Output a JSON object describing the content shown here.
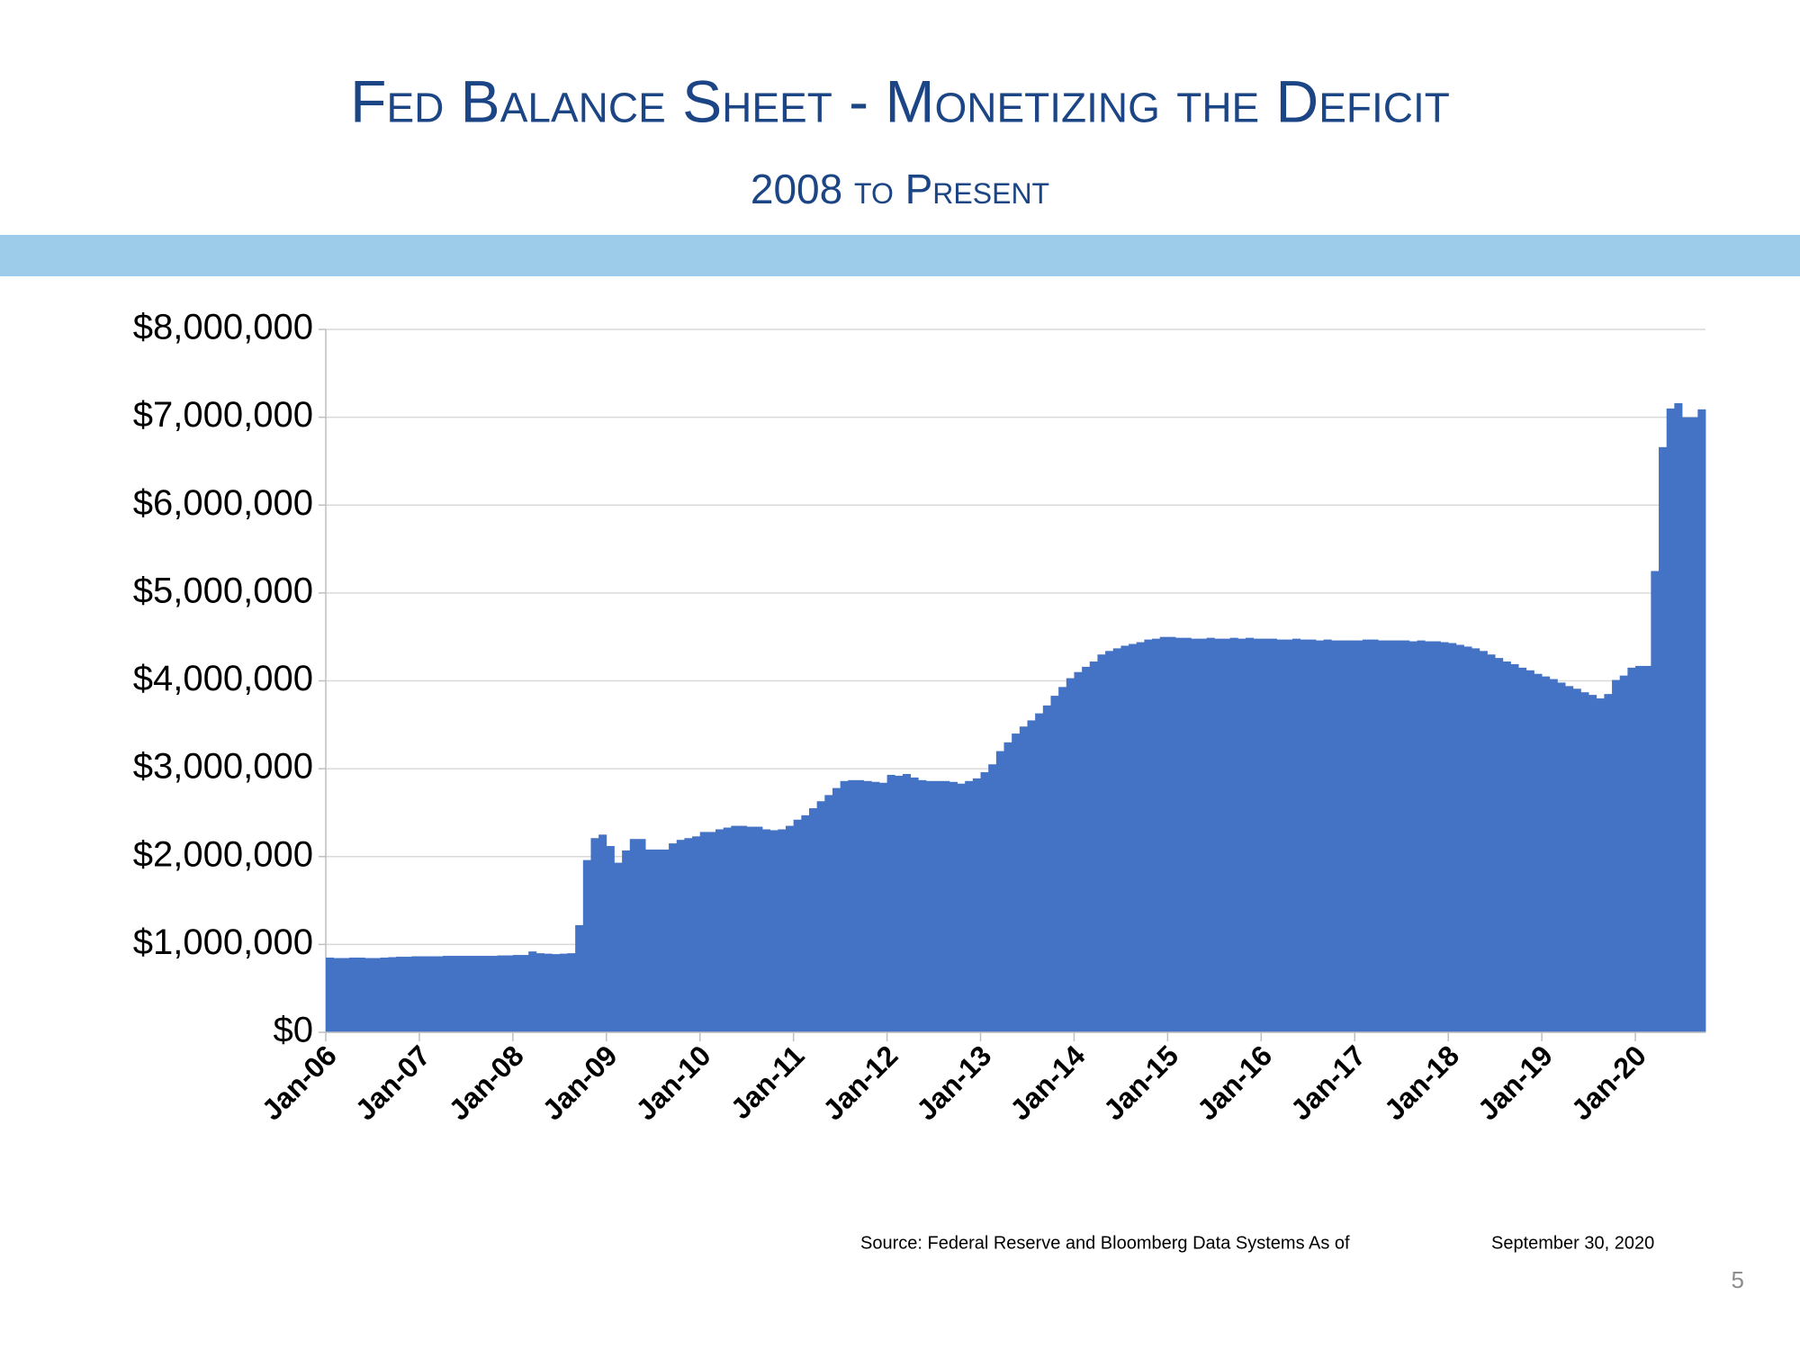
{
  "chart_data": {
    "type": "bar",
    "title": "Fed Balance Sheet - Monetizing the Deficit",
    "subtitle": "2008 to Present",
    "source": "Source:  Federal Reserve and Bloomberg Data Systems As of",
    "source_date": "September 30, 2020",
    "page_number": "5",
    "color": "#4472c4",
    "grid": true,
    "categories": [
      "Jan-06",
      null,
      null,
      null,
      null,
      null,
      null,
      null,
      null,
      null,
      null,
      null,
      "Jan-07",
      null,
      null,
      null,
      null,
      null,
      null,
      null,
      null,
      null,
      null,
      null,
      "Jan-08",
      null,
      null,
      null,
      null,
      null,
      null,
      null,
      null,
      null,
      null,
      null,
      "Jan-09",
      null,
      null,
      null,
      null,
      null,
      null,
      null,
      null,
      null,
      null,
      null,
      "Jan-10",
      null,
      null,
      null,
      null,
      null,
      null,
      null,
      null,
      null,
      null,
      null,
      "Jan-11",
      null,
      null,
      null,
      null,
      null,
      null,
      null,
      null,
      null,
      null,
      null,
      "Jan-12",
      null,
      null,
      null,
      null,
      null,
      null,
      null,
      null,
      null,
      null,
      null,
      "Jan-13",
      null,
      null,
      null,
      null,
      null,
      null,
      null,
      null,
      null,
      null,
      null,
      "Jan-14",
      null,
      null,
      null,
      null,
      null,
      null,
      null,
      null,
      null,
      null,
      null,
      "Jan-15",
      null,
      null,
      null,
      null,
      null,
      null,
      null,
      null,
      null,
      null,
      null,
      "Jan-16",
      null,
      null,
      null,
      null,
      null,
      null,
      null,
      null,
      null,
      null,
      null,
      "Jan-17",
      null,
      null,
      null,
      null,
      null,
      null,
      null,
      null,
      null,
      null,
      null,
      "Jan-18",
      null,
      null,
      null,
      null,
      null,
      null,
      null,
      null,
      null,
      null,
      null,
      "Jan-19",
      null,
      null,
      null,
      null,
      null,
      null,
      null,
      null,
      null,
      null,
      null,
      "Jan-20",
      null,
      null,
      null,
      null,
      null,
      null,
      null,
      null
    ],
    "values": [
      850000,
      845000,
      845000,
      850000,
      850000,
      845000,
      845000,
      850000,
      855000,
      860000,
      860000,
      865000,
      865000,
      865000,
      865000,
      870000,
      870000,
      870000,
      870000,
      870000,
      870000,
      870000,
      875000,
      875000,
      880000,
      880000,
      920000,
      900000,
      895000,
      890000,
      895000,
      900000,
      1220000,
      1960000,
      2210000,
      2250000,
      2120000,
      1930000,
      2070000,
      2200000,
      2200000,
      2080000,
      2080000,
      2080000,
      2150000,
      2190000,
      2210000,
      2230000,
      2280000,
      2280000,
      2310000,
      2330000,
      2350000,
      2350000,
      2340000,
      2340000,
      2310000,
      2300000,
      2310000,
      2350000,
      2420000,
      2470000,
      2550000,
      2630000,
      2700000,
      2780000,
      2860000,
      2870000,
      2870000,
      2860000,
      2850000,
      2840000,
      2930000,
      2920000,
      2940000,
      2900000,
      2870000,
      2860000,
      2860000,
      2860000,
      2850000,
      2830000,
      2860000,
      2890000,
      2960000,
      3050000,
      3200000,
      3300000,
      3400000,
      3480000,
      3550000,
      3630000,
      3720000,
      3830000,
      3930000,
      4030000,
      4100000,
      4160000,
      4220000,
      4300000,
      4340000,
      4370000,
      4400000,
      4420000,
      4440000,
      4470000,
      4480000,
      4500000,
      4500000,
      4490000,
      4490000,
      4480000,
      4480000,
      4490000,
      4480000,
      4480000,
      4490000,
      4480000,
      4490000,
      4480000,
      4480000,
      4480000,
      4470000,
      4470000,
      4480000,
      4470000,
      4470000,
      4460000,
      4470000,
      4460000,
      4460000,
      4460000,
      4460000,
      4470000,
      4470000,
      4460000,
      4460000,
      4460000,
      4460000,
      4450000,
      4460000,
      4450000,
      4450000,
      4440000,
      4430000,
      4410000,
      4390000,
      4370000,
      4340000,
      4300000,
      4260000,
      4220000,
      4190000,
      4150000,
      4120000,
      4080000,
      4050000,
      4020000,
      3980000,
      3940000,
      3910000,
      3870000,
      3840000,
      3800000,
      3850000,
      4010000,
      4060000,
      4150000,
      4170000,
      4170000,
      5250000,
      6660000,
      7100000,
      7160000,
      7000000,
      7000000,
      7090000
    ],
    "ylim": [
      0,
      8000000
    ],
    "yticks": [
      {
        "value": 0,
        "label": "$0"
      },
      {
        "value": 1000000,
        "label": "$1,000,000"
      },
      {
        "value": 2000000,
        "label": "$2,000,000"
      },
      {
        "value": 3000000,
        "label": "$3,000,000"
      },
      {
        "value": 4000000,
        "label": "$4,000,000"
      },
      {
        "value": 5000000,
        "label": "$5,000,000"
      },
      {
        "value": 6000000,
        "label": "$6,000,000"
      },
      {
        "value": 7000000,
        "label": "$7,000,000"
      },
      {
        "value": 8000000,
        "label": "$8,000,000"
      }
    ]
  }
}
